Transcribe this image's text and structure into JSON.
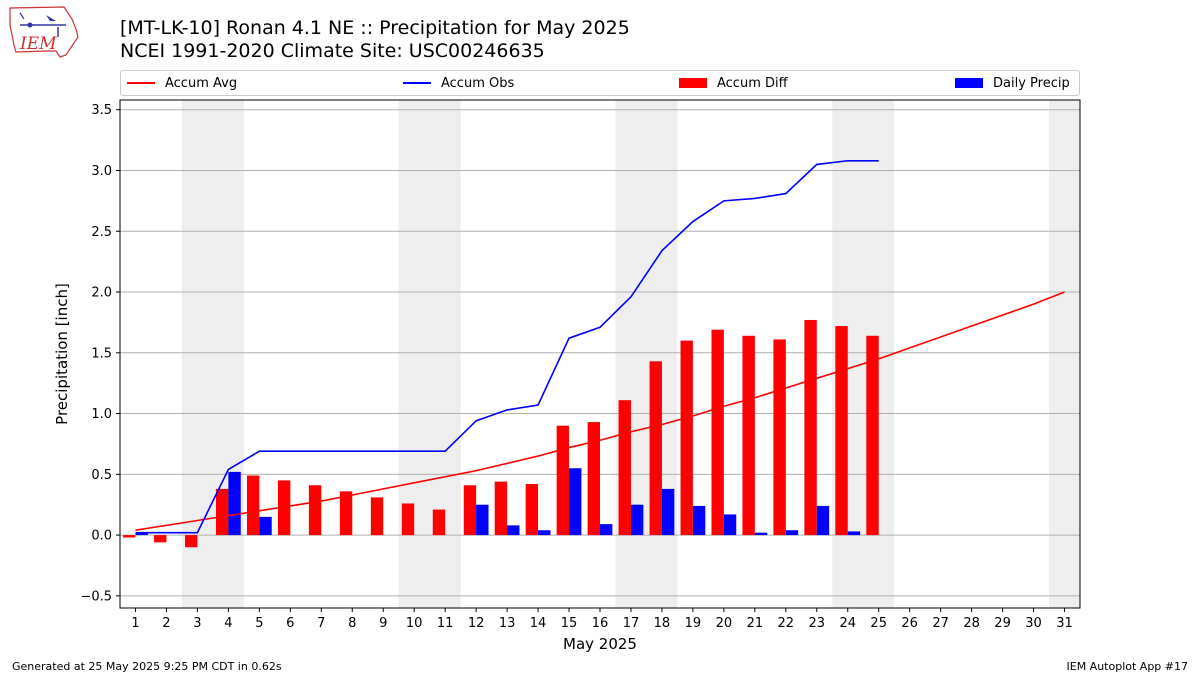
{
  "header": {
    "title_line1": "[MT-LK-10] Ronan 4.1 NE :: Precipitation for May 2025",
    "title_line2": "NCEI 1991-2020 Climate Site: USC00246635",
    "logo_text": "IEM"
  },
  "footer": {
    "generated": "Generated at 25 May 2025 9:25 PM CDT in 0.62s",
    "app": "IEM Autoplot App #17"
  },
  "colors": {
    "avg": "#ff0000",
    "obs": "#0000ff",
    "diff": "#ff0000",
    "daily": "#0000ff",
    "weekend_shade": "#eeeeee",
    "grid": "#b0b0b0"
  },
  "chart_data": {
    "type": "bar",
    "title": "[MT-LK-10] Ronan 4.1 NE :: Precipitation for May 2025",
    "subtitle": "NCEI 1991-2020 Climate Site: USC00246635",
    "xlabel": "May 2025",
    "ylabel": "Precipitation [inch]",
    "ylim": [
      -0.6,
      3.58
    ],
    "yticks": [
      -0.5,
      0.0,
      0.5,
      1.0,
      1.5,
      2.0,
      2.5,
      3.0,
      3.5
    ],
    "ytick_labels": [
      "−0.5",
      "0.0",
      "0.5",
      "1.0",
      "1.5",
      "2.0",
      "2.5",
      "3.0",
      "3.5"
    ],
    "x": [
      1,
      2,
      3,
      4,
      5,
      6,
      7,
      8,
      9,
      10,
      11,
      12,
      13,
      14,
      15,
      16,
      17,
      18,
      19,
      20,
      21,
      22,
      23,
      24,
      25,
      26,
      27,
      28,
      29,
      30,
      31
    ],
    "xlim": [
      0.5,
      31.5
    ],
    "grid": "horizontal",
    "legend_placement": "top",
    "weekend_shading": [
      [
        3,
        4
      ],
      [
        10,
        11
      ],
      [
        17,
        18
      ],
      [
        24,
        25
      ],
      [
        31,
        31
      ]
    ],
    "series": [
      {
        "name": "Accum Avg",
        "kind": "line",
        "x": [
          1,
          2,
          3,
          4,
          5,
          6,
          7,
          8,
          9,
          10,
          11,
          12,
          13,
          14,
          15,
          16,
          17,
          18,
          19,
          20,
          21,
          22,
          23,
          24,
          25,
          26,
          27,
          28,
          29,
          30,
          31
        ],
        "values": [
          0.04,
          0.08,
          0.12,
          0.16,
          0.2,
          0.24,
          0.28,
          0.33,
          0.38,
          0.43,
          0.48,
          0.53,
          0.59,
          0.65,
          0.72,
          0.78,
          0.85,
          0.91,
          0.98,
          1.06,
          1.13,
          1.21,
          1.29,
          1.37,
          1.45,
          1.54,
          1.63,
          1.72,
          1.81,
          1.9,
          2.0
        ]
      },
      {
        "name": "Accum Obs",
        "kind": "line",
        "x": [
          1,
          2,
          3,
          4,
          5,
          6,
          7,
          8,
          9,
          10,
          11,
          12,
          13,
          14,
          15,
          16,
          17,
          18,
          19,
          20,
          21,
          22,
          23,
          24,
          25
        ],
        "values": [
          0.02,
          0.02,
          0.02,
          0.54,
          0.69,
          0.69,
          0.69,
          0.69,
          0.69,
          0.69,
          0.69,
          0.94,
          1.03,
          1.07,
          1.62,
          1.71,
          1.96,
          2.34,
          2.58,
          2.75,
          2.77,
          2.81,
          3.05,
          3.08,
          3.08
        ]
      },
      {
        "name": "Accum Diff",
        "kind": "bar",
        "x": [
          1,
          2,
          3,
          4,
          5,
          6,
          7,
          8,
          9,
          10,
          11,
          12,
          13,
          14,
          15,
          16,
          17,
          18,
          19,
          20,
          21,
          22,
          23,
          24,
          25
        ],
        "values": [
          -0.02,
          -0.06,
          -0.1,
          0.38,
          0.49,
          0.45,
          0.41,
          0.36,
          0.31,
          0.26,
          0.21,
          0.41,
          0.44,
          0.42,
          0.9,
          0.93,
          1.11,
          1.43,
          1.6,
          1.69,
          1.64,
          1.61,
          1.77,
          1.72,
          1.64
        ]
      },
      {
        "name": "Daily Precip",
        "kind": "bar",
        "x": [
          1,
          2,
          3,
          4,
          5,
          6,
          7,
          8,
          9,
          10,
          11,
          12,
          13,
          14,
          15,
          16,
          17,
          18,
          19,
          20,
          21,
          22,
          23,
          24,
          25
        ],
        "values": [
          0.02,
          0,
          0,
          0.52,
          0.15,
          0,
          0,
          0,
          0,
          0,
          0,
          0.25,
          0.08,
          0.04,
          0.55,
          0.09,
          0.25,
          0.38,
          0.24,
          0.17,
          0.02,
          0.04,
          0.24,
          0.03,
          0
        ]
      }
    ]
  }
}
